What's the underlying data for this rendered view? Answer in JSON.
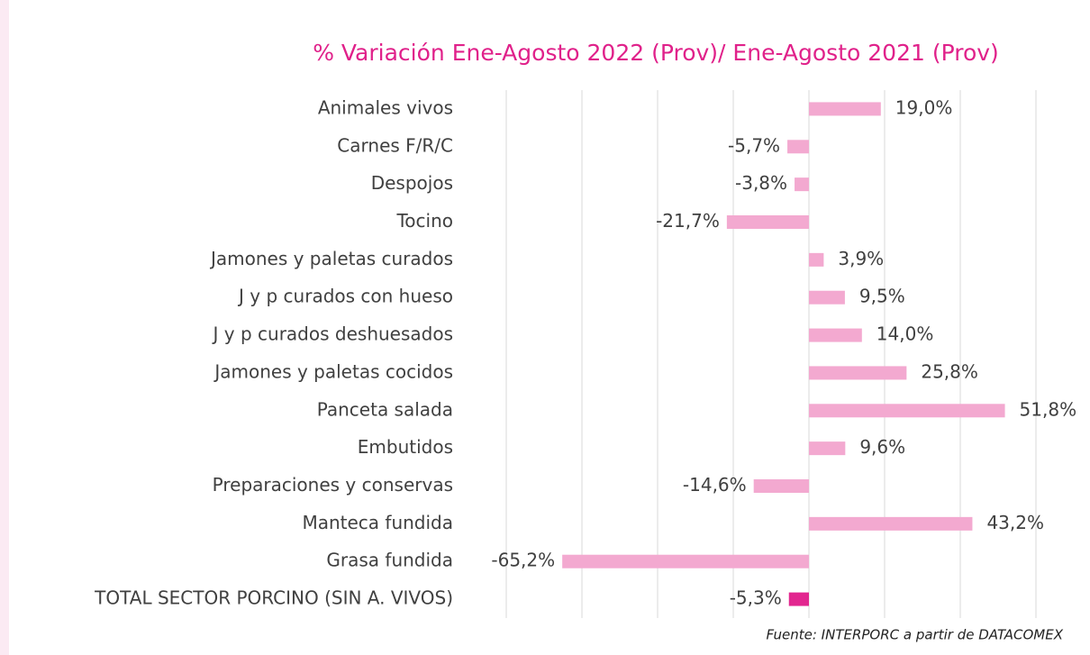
{
  "chart_data": {
    "type": "bar",
    "orientation": "horizontal",
    "title": "% Variación Ene-Agosto 2022 (Prov)/ Ene-Agosto 2021 (Prov)",
    "categories": [
      "Animales vivos",
      "Carnes F/R/C",
      "Despojos",
      "Tocino",
      "Jamones y paletas curados",
      "J y p curados con hueso",
      "J y p curados deshuesados",
      "Jamones y paletas cocidos",
      "Panceta salada",
      "Embutidos",
      "Preparaciones y conservas",
      "Manteca fundida",
      "Grasa fundida",
      "TOTAL SECTOR PORCINO (SIN A. VIVOS)"
    ],
    "values": [
      19.0,
      -5.7,
      -3.8,
      -21.7,
      3.9,
      9.5,
      14.0,
      25.8,
      51.8,
      9.6,
      -14.6,
      43.2,
      -65.2,
      -5.3
    ],
    "value_labels": [
      "19,0%",
      "-5,7%",
      "-3,8%",
      "-21,7%",
      "3,9%",
      "9,5%",
      "14,0%",
      "25,8%",
      "51,8%",
      "9,6%",
      "-14,6%",
      "43,2%",
      "-65,2%",
      "-5,3%"
    ],
    "colors": [
      "#f3a9d0",
      "#f3a9d0",
      "#f3a9d0",
      "#f3a9d0",
      "#f3a9d0",
      "#f3a9d0",
      "#f3a9d0",
      "#f3a9d0",
      "#f3a9d0",
      "#f3a9d0",
      "#f3a9d0",
      "#f3a9d0",
      "#f3a9d0",
      "#e2268f"
    ],
    "xlim": [
      -80,
      60
    ],
    "xticks": [
      -80,
      -60,
      -40,
      -20,
      0,
      20,
      40,
      60
    ],
    "grid": true,
    "source": "Fuente: INTERPORC  a partir de DATACOMEX"
  }
}
